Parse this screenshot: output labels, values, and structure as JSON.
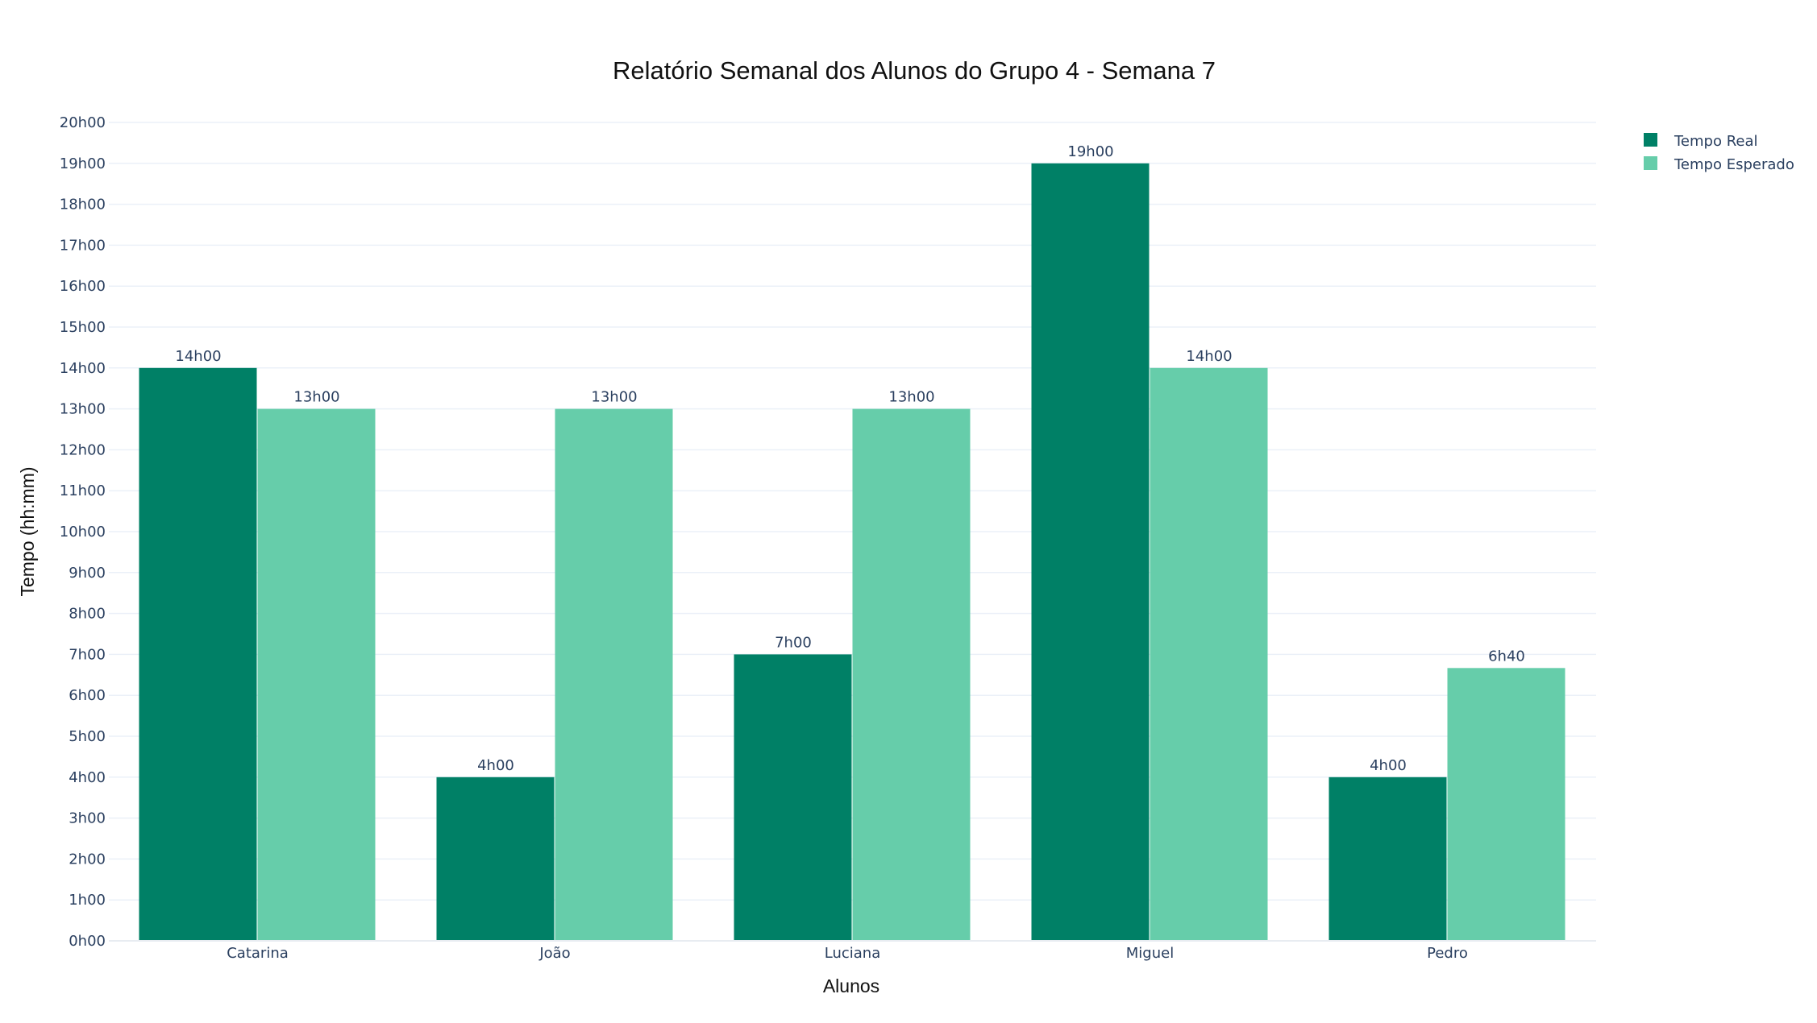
{
  "chart_data": {
    "type": "bar",
    "title": "Relatório Semanal dos Alunos do Grupo 4 - Semana 7",
    "xlabel": "Alunos",
    "ylabel": "Tempo (hh:mm)",
    "categories": [
      "Catarina",
      "João",
      "Luciana",
      "Miguel",
      "Pedro"
    ],
    "ylim": [
      0,
      20
    ],
    "y_ticks": [
      "0h00",
      "1h00",
      "2h00",
      "3h00",
      "4h00",
      "5h00",
      "6h00",
      "7h00",
      "8h00",
      "9h00",
      "10h00",
      "11h00",
      "12h00",
      "13h00",
      "14h00",
      "15h00",
      "16h00",
      "17h00",
      "18h00",
      "19h00",
      "20h00"
    ],
    "grid": true,
    "legend_position": "top-right",
    "series": [
      {
        "name": "Tempo Real",
        "color": "#008066",
        "values": [
          14,
          4,
          7,
          19,
          4
        ],
        "labels": [
          "14h00",
          "4h00",
          "7h00",
          "19h00",
          "4h00"
        ]
      },
      {
        "name": "Tempo Esperado",
        "color": "#66cdaa",
        "values": [
          13,
          13,
          13,
          14,
          6.667
        ],
        "labels": [
          "13h00",
          "13h00",
          "13h00",
          "14h00",
          "6h40"
        ]
      }
    ]
  }
}
